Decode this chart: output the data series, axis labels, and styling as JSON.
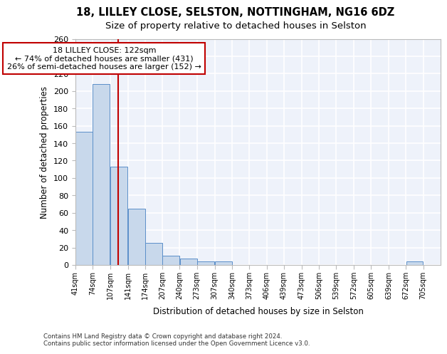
{
  "title1": "18, LILLEY CLOSE, SELSTON, NOTTINGHAM, NG16 6DZ",
  "title2": "Size of property relative to detached houses in Selston",
  "xlabel": "Distribution of detached houses by size in Selston",
  "ylabel": "Number of detached properties",
  "footnote": "Contains HM Land Registry data © Crown copyright and database right 2024.\nContains public sector information licensed under the Open Government Licence v3.0.",
  "bin_edges": [
    41,
    74,
    107,
    141,
    174,
    207,
    240,
    273,
    307,
    340,
    373,
    406,
    439,
    473,
    506,
    539,
    572,
    605,
    639,
    672,
    705
  ],
  "bar_heights": [
    153,
    208,
    113,
    65,
    25,
    11,
    7,
    4,
    4,
    0,
    0,
    0,
    0,
    0,
    0,
    0,
    0,
    0,
    0,
    4
  ],
  "bar_color": "#c8d8eb",
  "bar_edge_color": "#5b8fc9",
  "vline_x": 122,
  "vline_color": "#c00000",
  "annotation_text": "18 LILLEY CLOSE: 122sqm\n← 74% of detached houses are smaller (431)\n26% of semi-detached houses are larger (152) →",
  "annotation_box_color": "white",
  "annotation_box_edge_color": "#c00000",
  "ylim": [
    0,
    260
  ],
  "yticks": [
    0,
    20,
    40,
    60,
    80,
    100,
    120,
    140,
    160,
    180,
    200,
    220,
    240,
    260
  ],
  "background_color": "#eef2fa",
  "grid_color": "white",
  "title1_fontsize": 10.5,
  "title2_fontsize": 9.5,
  "tick_labels": [
    "41sqm",
    "74sqm",
    "107sqm",
    "141sqm",
    "174sqm",
    "207sqm",
    "240sqm",
    "273sqm",
    "307sqm",
    "340sqm",
    "373sqm",
    "406sqm",
    "439sqm",
    "473sqm",
    "506sqm",
    "539sqm",
    "572sqm",
    "605sqm",
    "639sqm",
    "672sqm",
    "705sqm"
  ]
}
